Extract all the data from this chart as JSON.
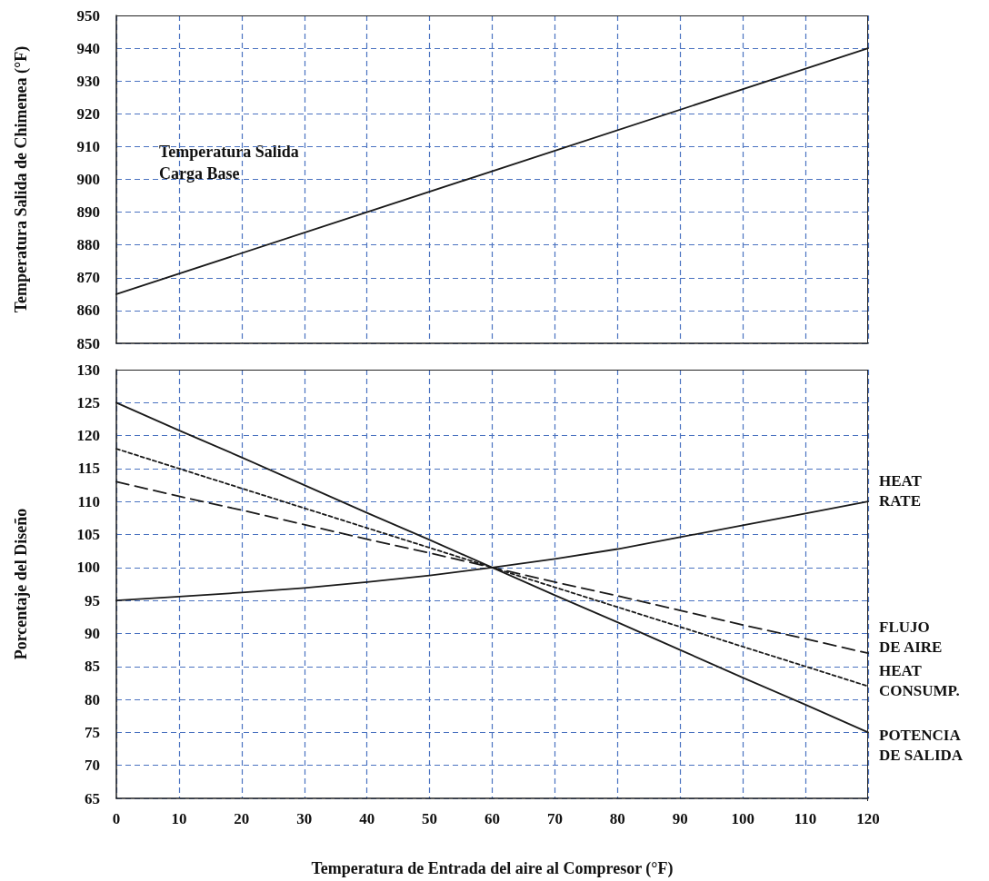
{
  "chart_data": [
    {
      "type": "line",
      "ylabel": "Temperatura Salida de Chimenea (°F)",
      "x": [
        0,
        120
      ],
      "xlim": [
        0,
        120
      ],
      "xticks": [
        0,
        10,
        20,
        30,
        40,
        50,
        60,
        70,
        80,
        90,
        100,
        110,
        120
      ],
      "ylim": [
        850,
        950
      ],
      "yticks": [
        850,
        860,
        870,
        880,
        890,
        900,
        910,
        920,
        930,
        940,
        950
      ],
      "tick_labels": "y",
      "grid": true,
      "annotations": [
        "Temperatura Salida Carga Base"
      ],
      "series": [
        {
          "color": "#1a1a1a",
          "line_style": "solid",
          "values": [
            865,
            940
          ]
        }
      ]
    },
    {
      "type": "line",
      "xlabel": "Temperatura de Entrada del aire al Compresor (°F)",
      "ylabel": "Porcentaje del Diseño",
      "x": [
        0,
        10,
        20,
        30,
        40,
        50,
        60,
        70,
        80,
        90,
        100,
        110,
        120
      ],
      "xlim": [
        0,
        120
      ],
      "xticks": [
        0,
        10,
        20,
        30,
        40,
        50,
        60,
        70,
        80,
        90,
        100,
        110,
        120
      ],
      "ylim": [
        65,
        130
      ],
      "yticks": [
        65,
        70,
        75,
        80,
        85,
        90,
        95,
        100,
        105,
        110,
        115,
        120,
        125,
        130
      ],
      "grid": true,
      "series": [
        {
          "name": "HEAT RATE",
          "color": "#1a1a1a",
          "line_style": "solid",
          "values": [
            95,
            95.6,
            96.2,
            96.9,
            97.8,
            98.8,
            100,
            101.3,
            102.8,
            104.6,
            106.4,
            108.2,
            110
          ]
        },
        {
          "name": "FLUJO DE AIRE",
          "color": "#1a1a1a",
          "line_style": "dashed",
          "values": [
            113,
            110.8,
            108.7,
            106.5,
            104.3,
            102.2,
            100,
            97.8,
            95.7,
            93.5,
            91.3,
            89.2,
            87
          ]
        },
        {
          "name": "HEAT CONSUMP.",
          "color": "#1a1a1a",
          "line_style": "dotted",
          "values": [
            118,
            115,
            112,
            109,
            106,
            103,
            100,
            97,
            94,
            91,
            88,
            85,
            82
          ]
        },
        {
          "name": "POTENCIA DE SALIDA",
          "color": "#1a1a1a",
          "line_style": "solid",
          "values": [
            125,
            120.8,
            116.7,
            112.5,
            108.3,
            104.2,
            100,
            95.8,
            91.7,
            87.5,
            83.3,
            79.2,
            75
          ]
        }
      ]
    }
  ]
}
